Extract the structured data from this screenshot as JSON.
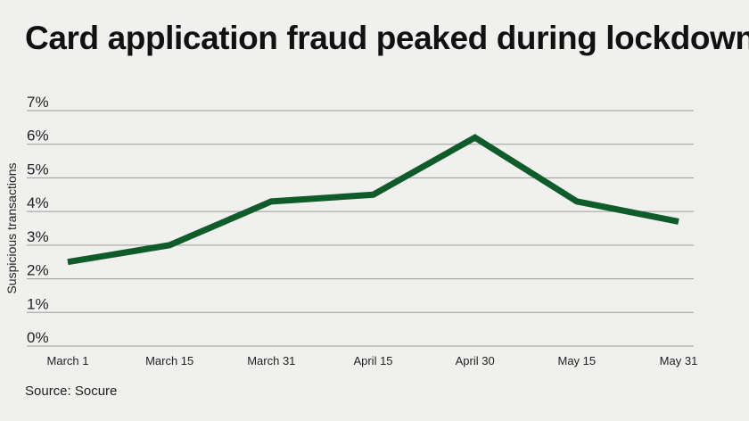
{
  "title": "Card application fraud peaked during lockdown",
  "source": "Source: Socure",
  "chart_data": {
    "type": "line",
    "title": "Card application fraud peaked during lockdown",
    "xlabel": "",
    "ylabel": "Suspicious transactions",
    "categories": [
      "March 1",
      "March 15",
      "March 31",
      "April 15",
      "April 30",
      "May 15",
      "May 31"
    ],
    "series": [
      {
        "values": [
          2.5,
          3.0,
          4.3,
          4.5,
          6.2,
          4.3,
          3.7
        ]
      }
    ],
    "ylim": [
      0,
      7
    ],
    "yticks": [
      "0%",
      "1%",
      "2%",
      "3%",
      "4%",
      "5%",
      "6%",
      "7%"
    ],
    "grid": true,
    "line_color": "#0f5b2a",
    "grid_color": "#9a9a9a"
  }
}
